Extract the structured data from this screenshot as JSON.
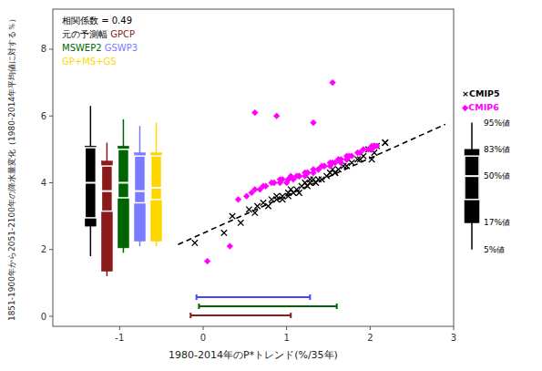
{
  "chart_data": {
    "type": "scatter",
    "xlabel": "1980-2014年のP*トレンド(%/35年)",
    "ylabel": "1851-1900年から2051-2100年の降水量変化（1980-2014年平均値に対する％）",
    "xlim": [
      -1.8,
      3.0
    ],
    "ylim": [
      -0.3,
      9.2
    ],
    "xticks": [
      -1,
      0,
      1,
      2,
      3
    ],
    "yticks": [
      0,
      2,
      4,
      6,
      8
    ],
    "annotation": "相関係数 = 0.49",
    "series": [
      {
        "name": "×CMIP5",
        "color": "black",
        "marker": "x",
        "x": [
          -0.1,
          0.25,
          0.45,
          0.55,
          0.65,
          0.72,
          0.82,
          0.88,
          0.95,
          1.02,
          1.08,
          1.12,
          1.18,
          1.22,
          1.28,
          1.32,
          1.38,
          1.42,
          1.48,
          1.52,
          1.58,
          1.62,
          1.68,
          1.78,
          1.85,
          1.92,
          1.98,
          2.08,
          2.18,
          0.35,
          0.88,
          1.15,
          1.25,
          0.62,
          0.95,
          1.05,
          1.35,
          1.58,
          2.02,
          2.18,
          0.78,
          1.02,
          1.28,
          1.55,
          1.72,
          1.88,
          2.05
        ],
        "values": [
          2.2,
          2.5,
          2.8,
          3.2,
          3.3,
          3.4,
          3.5,
          3.6,
          3.5,
          3.6,
          3.7,
          3.8,
          3.9,
          4.0,
          4.0,
          4.1,
          4.1,
          4.1,
          4.2,
          4.3,
          4.3,
          4.4,
          4.5,
          4.6,
          4.7,
          4.8,
          5.0,
          5.1,
          5.2,
          3.0,
          3.5,
          3.7,
          3.9,
          3.1,
          3.6,
          3.8,
          4.0,
          4.3,
          4.7,
          5.2,
          3.3,
          3.7,
          4.1,
          4.4,
          4.5,
          4.7,
          4.9
        ]
      },
      {
        "name": "◆CMIP6",
        "color": "magenta",
        "marker": "diamond",
        "x": [
          0.05,
          0.32,
          0.52,
          0.62,
          0.75,
          0.85,
          0.92,
          1.0,
          1.02,
          1.08,
          1.15,
          1.22,
          1.25,
          1.32,
          1.38,
          1.45,
          1.52,
          1.58,
          1.65,
          1.72,
          1.78,
          1.88,
          1.98,
          2.08,
          0.42,
          0.72,
          0.95,
          1.12,
          1.32,
          1.52,
          1.72,
          2.02,
          0.58,
          1.05,
          1.25,
          1.42,
          1.62,
          1.85,
          0.82,
          1.15,
          1.38,
          1.65,
          1.92,
          0.68,
          1.02,
          1.45,
          1.72,
          2.05,
          1.22,
          1.55,
          1.75,
          2.02,
          0.92,
          0.88,
          1.32,
          0.62,
          1.55
        ],
        "values": [
          1.65,
          2.1,
          3.6,
          3.8,
          3.9,
          4.0,
          4.0,
          4.0,
          4.1,
          4.1,
          4.2,
          4.2,
          4.3,
          4.3,
          4.4,
          4.5,
          4.5,
          4.6,
          4.6,
          4.7,
          4.8,
          4.9,
          5.0,
          5.1,
          3.5,
          3.9,
          4.1,
          4.2,
          4.4,
          4.6,
          4.7,
          5.0,
          3.7,
          4.2,
          4.3,
          4.5,
          4.7,
          4.9,
          4.0,
          4.2,
          4.4,
          4.7,
          5.0,
          3.8,
          4.1,
          4.5,
          4.8,
          5.1,
          4.3,
          4.6,
          4.8,
          5.1,
          4.1,
          6.0,
          5.8,
          6.1,
          7.0
        ]
      }
    ],
    "trend_line": {
      "x": [
        -0.3,
        2.9
      ],
      "values": [
        2.15,
        5.75
      ],
      "color": "black",
      "line_style": "dashed"
    },
    "boxes": [
      {
        "name": "元の予測幅 ",
        "color": "black",
        "q5": 1.8,
        "q17": 2.7,
        "q25": 2.95,
        "q50": 4.0,
        "q75": 5.05,
        "q83": 5.1,
        "q95": 6.3
      },
      {
        "name": "GPCP",
        "color": "#8B1A1A",
        "q5": 1.2,
        "q17": 1.35,
        "q25": 3.15,
        "q50": 3.75,
        "q75": 4.5,
        "q83": 4.65,
        "q95": 5.2
      },
      {
        "name": "MSWEP2",
        "color": "#006400",
        "q5": 1.9,
        "q17": 2.05,
        "q25": 3.55,
        "q50": 4.0,
        "q75": 5.0,
        "q83": 5.1,
        "q95": 5.9
      },
      {
        "name": " GSWP3",
        "color": "#7B7BFF",
        "q5": 2.1,
        "q17": 2.25,
        "q25": 3.4,
        "q50": 3.75,
        "q75": 4.8,
        "q83": 4.9,
        "q95": 5.7
      },
      {
        "name": "GP+MS+GS",
        "color": "#FFD700",
        "q5": 2.1,
        "q17": 2.25,
        "q25": 3.5,
        "q50": 3.85,
        "q75": 4.8,
        "q83": 4.9,
        "q95": 5.8
      }
    ],
    "ranges": [
      {
        "color": "#4444FF",
        "xmin": -0.08,
        "xmax": 1.28
      },
      {
        "color": "#006400",
        "xmin": -0.05,
        "xmax": 1.6
      },
      {
        "color": "#8B1A1A",
        "xmin": -0.15,
        "xmax": 1.05
      }
    ],
    "right_box": {
      "color": "black",
      "q5": 2.0,
      "q17": 2.8,
      "q25": 3.5,
      "q50": 4.2,
      "q75": 4.8,
      "q83": 5.0,
      "q95": 5.8
    },
    "percentile_labels": [
      "95%値",
      "83%値",
      "50%値",
      "17%値",
      "5%値"
    ]
  }
}
